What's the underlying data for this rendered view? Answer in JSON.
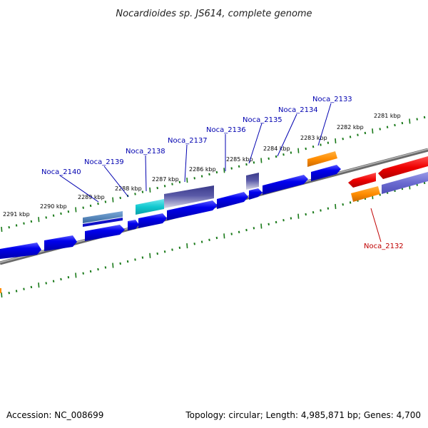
{
  "title": "Nocardioides sp. JS614, complete genome",
  "accession": "Accession: NC_008699",
  "topology": "Topology: circular; Length: 4,985,871 bp; Genes: 4,700",
  "colors": {
    "forward": "#0000ee",
    "dark": "#3a3a8a",
    "cyan": "#11c8cf",
    "steel": "#4a78aa",
    "orange": "#ff8c00",
    "red": "#ee0000",
    "lavender": "#6a6ad0",
    "tick": "#1a7a1a",
    "backbone": "#808080",
    "label_blue": "#0000b0",
    "label_red": "#c00000"
  },
  "kbp_labels": [
    "2291 kbp",
    "2290 kbp",
    "2289 kbp",
    "2288 kbp",
    "2287 kbp",
    "2286 kbp",
    "2285 kbp",
    "2284 kbp",
    "2283 kbp",
    "2282 kbp",
    "2281 kbp"
  ],
  "gene_labels": [
    "Noca_2140",
    "Noca_2139",
    "Noca_2138",
    "Noca_2137",
    "Noca_2136",
    "Noca_2135",
    "Noca_2134",
    "Noca_2133",
    "Noca_2132"
  ]
}
